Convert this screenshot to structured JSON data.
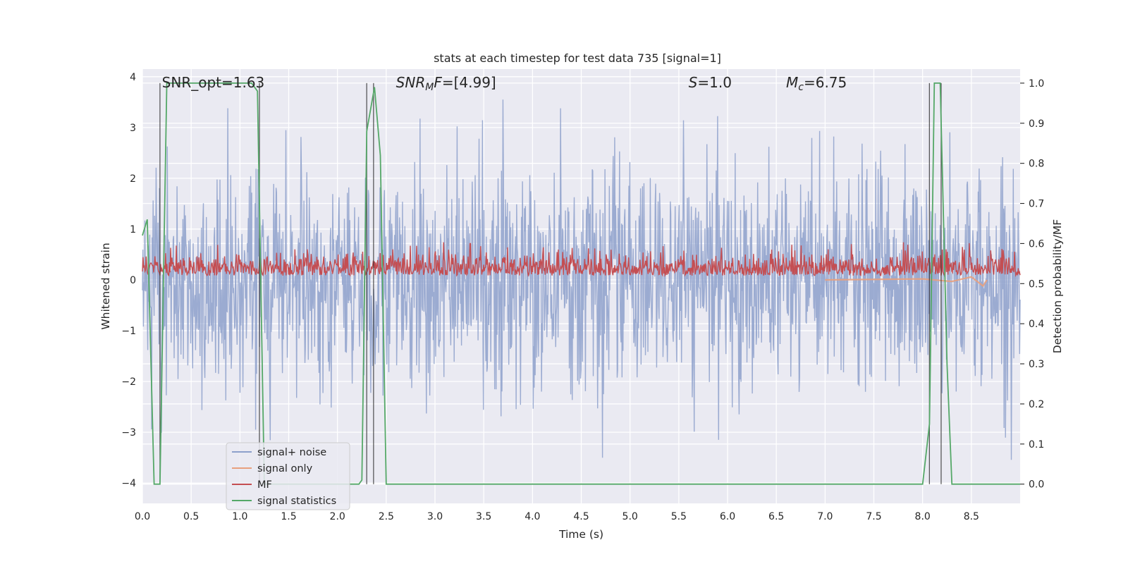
{
  "chart_data": {
    "type": "line",
    "title": "stats at each timestep for test data 735 [signal=1]",
    "xlabel": "Time (s)",
    "ylabel": "Whitened strain",
    "y2label": "Detection probability/MF",
    "xlim": [
      0.0,
      9.0
    ],
    "ylim": [
      -4.4,
      4.15
    ],
    "y2lim": [
      -0.048,
      1.035
    ],
    "xticks": [
      "0.0",
      "0.5",
      "1.0",
      "1.5",
      "2.0",
      "2.5",
      "3.0",
      "3.5",
      "4.0",
      "4.5",
      "5.0",
      "5.5",
      "6.0",
      "6.5",
      "7.0",
      "7.5",
      "8.0",
      "8.5"
    ],
    "yticks": [
      "−4",
      "−3",
      "−2",
      "−1",
      "0",
      "1",
      "2",
      "3",
      "4"
    ],
    "y2ticks": [
      "0.0",
      "0.1",
      "0.2",
      "0.3",
      "0.4",
      "0.5",
      "0.6",
      "0.7",
      "0.8",
      "0.9",
      "1.0"
    ],
    "grid": true,
    "legend_position": "lower-left",
    "annotations": {
      "snr_opt": "SNR_opt=1.63",
      "snr_mf": "SNR_MF=[4.99]",
      "s": "S=1.0",
      "mc": "M_c=6.75"
    },
    "series": [
      {
        "name": "signal+ noise",
        "color": "#8da0cb",
        "description_values": "whitened noise, approx. Gaussian, sigma ~ 1, peaks to about +/-3.5"
      },
      {
        "name": "signal only",
        "color": "#e8a07e",
        "x": [
          7.0,
          8.0,
          8.3,
          8.5,
          8.62,
          8.66
        ],
        "values": [
          0.0,
          0.02,
          -0.03,
          0.06,
          -0.12,
          0.0
        ]
      },
      {
        "name": "MF",
        "color": "#c44e52",
        "axis": "right",
        "baseline": 0.52,
        "values_range": [
          0.5,
          0.6
        ]
      },
      {
        "name": "signal statistics",
        "color": "#55a868",
        "axis": "right",
        "x": [
          0.0,
          0.05,
          0.12,
          0.18,
          0.25,
          1.12,
          1.18,
          1.25,
          1.35,
          2.22,
          2.25,
          2.3,
          2.38,
          2.44,
          2.5,
          8.0,
          8.07,
          8.12,
          8.18,
          8.25,
          8.3,
          9.0
        ],
        "values": [
          0.62,
          0.66,
          0.0,
          0.0,
          1.0,
          1.0,
          0.98,
          0.0,
          0.0,
          0.0,
          0.01,
          0.88,
          0.99,
          0.82,
          0.0,
          0.0,
          0.15,
          1.0,
          1.0,
          0.3,
          0.0,
          0.0
        ]
      }
    ],
    "vertical_markers_x": [
      0.18,
      1.2,
      2.3,
      2.37,
      8.07,
      8.19
    ]
  }
}
